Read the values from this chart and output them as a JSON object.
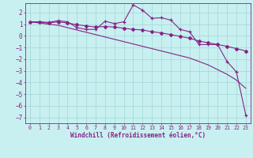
{
  "background_color": "#c8f0f0",
  "grid_color": "#a8dada",
  "line_color": "#882288",
  "xlabel": "Windchill (Refroidissement éolien,°C)",
  "xlim": [
    -0.5,
    23.5
  ],
  "ylim": [
    -7.5,
    2.8
  ],
  "yticks": [
    -7,
    -6,
    -5,
    -4,
    -3,
    -2,
    -1,
    0,
    1,
    2
  ],
  "xticks": [
    0,
    1,
    2,
    3,
    4,
    5,
    6,
    7,
    8,
    9,
    10,
    11,
    12,
    13,
    14,
    15,
    16,
    17,
    18,
    19,
    20,
    21,
    22,
    23
  ],
  "series1_x": [
    0,
    1,
    2,
    3,
    4,
    5,
    6,
    7,
    8,
    9,
    10,
    11,
    12,
    13,
    14,
    15,
    16,
    17,
    18,
    19,
    20,
    21,
    22,
    23
  ],
  "series1_y": [
    1.2,
    1.2,
    1.15,
    1.3,
    1.2,
    0.7,
    0.55,
    0.55,
    1.25,
    1.05,
    1.2,
    2.65,
    2.2,
    1.5,
    1.55,
    1.35,
    0.55,
    0.35,
    -0.75,
    -0.75,
    -0.75,
    -2.2,
    -3.1,
    -6.8
  ],
  "series2_x": [
    0,
    1,
    2,
    3,
    4,
    5,
    6,
    7,
    8,
    9,
    10,
    11,
    12,
    13,
    14,
    15,
    16,
    17,
    18,
    19,
    20,
    21,
    22,
    23
  ],
  "series2_y": [
    1.2,
    1.15,
    1.1,
    1.2,
    1.1,
    0.95,
    0.85,
    0.75,
    0.8,
    0.75,
    0.65,
    0.55,
    0.5,
    0.35,
    0.25,
    0.1,
    -0.05,
    -0.2,
    -0.45,
    -0.6,
    -0.75,
    -0.9,
    -1.1,
    -1.3
  ],
  "series3_x": [
    0,
    1,
    2,
    3,
    4,
    5,
    6,
    7,
    8,
    9,
    10,
    11,
    12,
    13,
    14,
    15,
    16,
    17,
    18,
    19,
    20,
    21,
    22,
    23
  ],
  "series3_y": [
    1.2,
    1.1,
    1.0,
    0.9,
    0.7,
    0.5,
    0.3,
    0.1,
    -0.1,
    -0.3,
    -0.5,
    -0.7,
    -0.9,
    -1.1,
    -1.3,
    -1.5,
    -1.7,
    -1.9,
    -2.2,
    -2.5,
    -2.9,
    -3.3,
    -3.8,
    -4.5
  ]
}
